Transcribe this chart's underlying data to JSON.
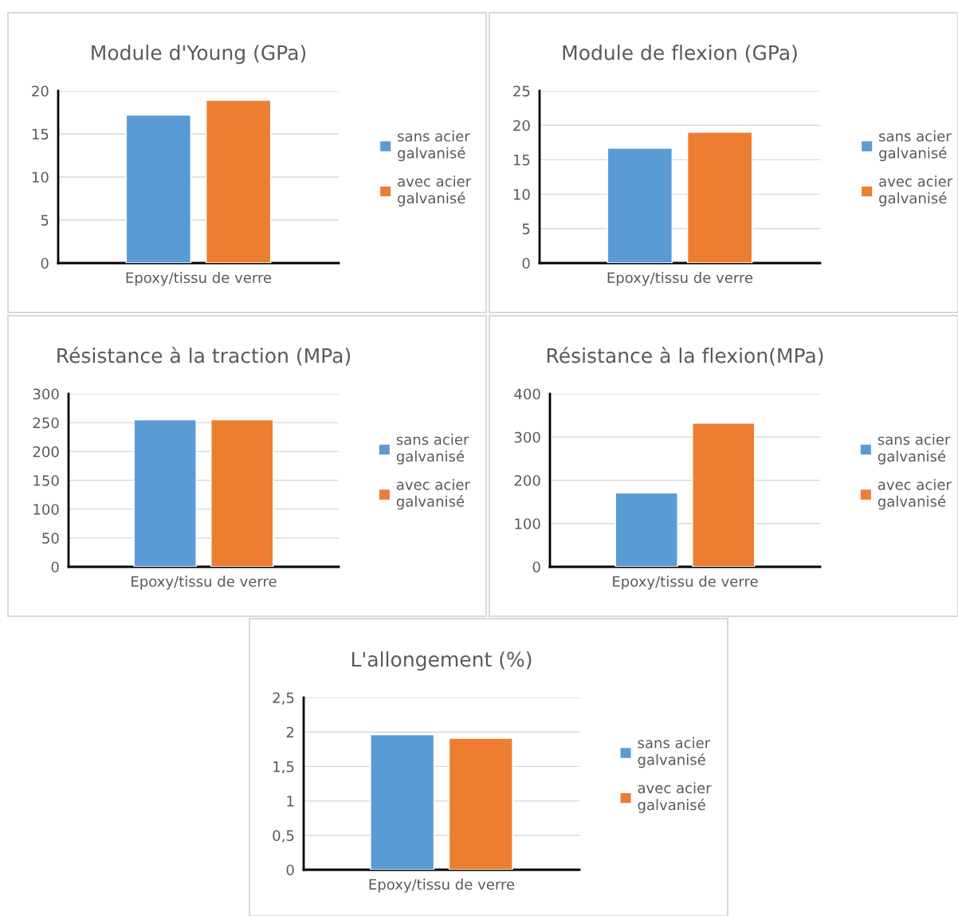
{
  "chart_data": [
    {
      "type": "bar",
      "title": "Module d'Young (GPa)",
      "categories": [
        "Epoxy/tissu de verre"
      ],
      "ylim": [
        0,
        20
      ],
      "yticks": [
        0,
        5,
        10,
        15,
        20
      ],
      "grid": "y",
      "legend": "right",
      "series": [
        {
          "name": "sans acier\ngalvanisé",
          "color": "#5b9bd5",
          "values": [
            17.2
          ]
        },
        {
          "name": "avec acier\ngalvanisé",
          "color": "#ed7d31",
          "values": [
            18.9
          ]
        }
      ]
    },
    {
      "type": "bar",
      "title": "Module de flexion (GPa)",
      "categories": [
        "Epoxy/tissu de verre"
      ],
      "ylim": [
        0,
        25
      ],
      "yticks": [
        0,
        5,
        10,
        15,
        20,
        25
      ],
      "grid": "y",
      "legend": "right",
      "series": [
        {
          "name": "sans acier\ngalvanisé",
          "color": "#5b9bd5",
          "values": [
            16.7
          ]
        },
        {
          "name": "avec acier\ngalvanisé",
          "color": "#ed7d31",
          "values": [
            19.0
          ]
        }
      ]
    },
    {
      "type": "bar",
      "title": "Résistance à la traction (MPa)",
      "categories": [
        "Epoxy/tissu de verre"
      ],
      "ylim": [
        0,
        300
      ],
      "yticks": [
        0,
        50,
        100,
        150,
        200,
        250,
        300
      ],
      "grid": "y",
      "legend": "right",
      "series": [
        {
          "name": "sans acier\ngalvanisé",
          "color": "#5b9bd5",
          "values": [
            255
          ]
        },
        {
          "name": "avec acier\ngalvanisé",
          "color": "#ed7d31",
          "values": [
            255
          ]
        }
      ]
    },
    {
      "type": "bar",
      "title": "Résistance à la flexion(MPa)",
      "categories": [
        "Epoxy/tissu de verre"
      ],
      "ylim": [
        0,
        400
      ],
      "yticks": [
        0,
        100,
        200,
        300,
        400
      ],
      "grid": "y",
      "legend": "right",
      "series": [
        {
          "name": "sans acier\ngalvanisé",
          "color": "#5b9bd5",
          "values": [
            171
          ]
        },
        {
          "name": "avec acier\ngalvanisé",
          "color": "#ed7d31",
          "values": [
            332
          ]
        }
      ]
    },
    {
      "type": "bar",
      "title": "L'allongement (%)",
      "categories": [
        "Epoxy/tissu de verre"
      ],
      "ylim": [
        0,
        2.5
      ],
      "yticks": [
        0,
        {
          "value": 0.5,
          "label": "0,5"
        },
        1,
        {
          "value": 1.5,
          "label": "1,5"
        },
        2,
        {
          "value": 2.5,
          "label": "2,5"
        }
      ],
      "grid": "y",
      "legend": "right",
      "series": [
        {
          "name": "sans acier\ngalvanisé",
          "color": "#5b9bd5",
          "values": [
            1.96
          ]
        },
        {
          "name": "avec acier\ngalvanisé",
          "color": "#ed7d31",
          "values": [
            1.91
          ]
        }
      ]
    }
  ]
}
